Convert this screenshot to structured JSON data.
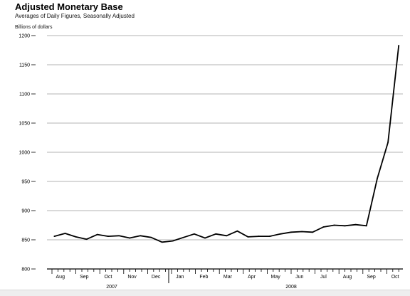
{
  "chart_data": {
    "type": "line",
    "title": "Adjusted Monetary Base",
    "subtitle": "Averages of Daily Figures, Seasonally Adjusted",
    "ylabel": "Billions of dollars",
    "xlabel": "",
    "ylim": [
      800,
      1200
    ],
    "yticks": [
      800,
      850,
      900,
      950,
      1000,
      1050,
      1100,
      1150,
      1200
    ],
    "grid": true,
    "months": [
      "Aug",
      "Sep",
      "Oct",
      "Nov",
      "Dec",
      "Jan",
      "Feb",
      "Mar",
      "Apr",
      "May",
      "Jun",
      "Jul",
      "Aug",
      "Sep",
      "Oct"
    ],
    "years": [
      {
        "label": "2007",
        "first_month": 0,
        "last_month": 4
      },
      {
        "label": "2008",
        "first_month": 5,
        "last_month": 14
      }
    ],
    "series": [
      {
        "values": [
          856,
          861,
          855,
          851,
          859,
          856,
          857,
          853,
          857,
          854,
          846,
          848,
          854,
          860,
          853,
          860,
          857,
          865,
          855,
          856,
          856,
          860,
          863,
          864,
          863,
          872,
          875,
          874,
          876,
          874,
          955,
          1017,
          1183
        ],
        "color": "#000000"
      }
    ],
    "x_start_month_offset": 0.1,
    "x_step_months": 0.45
  }
}
